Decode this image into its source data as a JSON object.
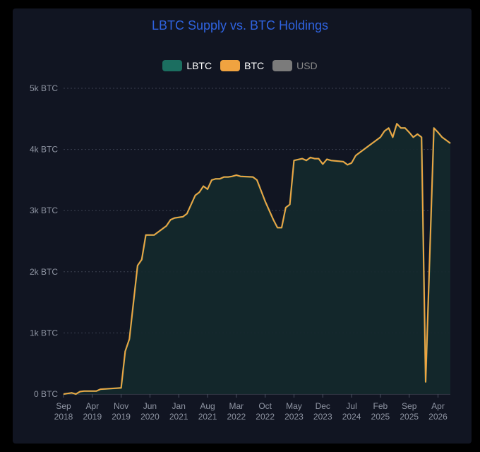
{
  "chart_data": {
    "type": "area",
    "title": "LBTC Supply vs. BTC Holdings",
    "legend": [
      {
        "name": "LBTC",
        "color": "#1b6e60"
      },
      {
        "name": "BTC",
        "color": "#f0a340"
      },
      {
        "name": "USD",
        "color": "#7b7b7b",
        "muted": true
      }
    ],
    "legend_position": "top",
    "y_ticks": [
      {
        "value": 0,
        "label": "0 BTC"
      },
      {
        "value": 1000,
        "label": "1k BTC"
      },
      {
        "value": 2000,
        "label": "2k BTC"
      },
      {
        "value": 3000,
        "label": "3k BTC"
      },
      {
        "value": 4000,
        "label": "4k BTC"
      },
      {
        "value": 5000,
        "label": "5k BTC"
      }
    ],
    "ylim": [
      0,
      5000
    ],
    "xlim": [
      "2018-09",
      "2026-07"
    ],
    "x_ticks": [
      {
        "value": "2018-09",
        "month": "Sep",
        "year": "2018"
      },
      {
        "value": "2019-04",
        "month": "Apr",
        "year": "2019"
      },
      {
        "value": "2019-11",
        "month": "Nov",
        "year": "2019"
      },
      {
        "value": "2020-06",
        "month": "Jun",
        "year": "2020"
      },
      {
        "value": "2021-01",
        "month": "Jan",
        "year": "2021"
      },
      {
        "value": "2021-08",
        "month": "Aug",
        "year": "2021"
      },
      {
        "value": "2022-03",
        "month": "Mar",
        "year": "2022"
      },
      {
        "value": "2022-10",
        "month": "Oct",
        "year": "2022"
      },
      {
        "value": "2023-05",
        "month": "May",
        "year": "2023"
      },
      {
        "value": "2023-12",
        "month": "Dec",
        "year": "2023"
      },
      {
        "value": "2024-07",
        "month": "Jul",
        "year": "2024"
      },
      {
        "value": "2025-02",
        "month": "Feb",
        "year": "2025"
      },
      {
        "value": "2025-09",
        "month": "Sep",
        "year": "2025"
      },
      {
        "value": "2026-04",
        "month": "Apr",
        "year": "2026"
      }
    ],
    "grid": true,
    "series": [
      {
        "name": "BTC",
        "x": [
          "2018-09",
          "2018-11",
          "2018-12",
          "2019-01",
          "2019-02",
          "2019-05",
          "2019-06",
          "2019-11",
          "2019-12",
          "2020-01",
          "2020-03",
          "2020-04",
          "2020-05",
          "2020-06",
          "2020-07",
          "2020-09",
          "2020-10",
          "2020-11",
          "2020-12",
          "2021-02",
          "2021-03",
          "2021-05",
          "2021-06",
          "2021-07",
          "2021-08",
          "2021-09",
          "2021-10",
          "2021-11",
          "2021-12",
          "2022-01",
          "2022-02",
          "2022-03",
          "2022-04",
          "2022-07",
          "2022-08",
          "2022-10",
          "2022-12",
          "2023-01",
          "2023-02",
          "2023-03",
          "2023-04",
          "2023-05",
          "2023-07",
          "2023-08",
          "2023-09",
          "2023-10",
          "2023-11",
          "2023-12",
          "2024-01",
          "2024-02",
          "2024-05",
          "2024-06",
          "2024-07",
          "2024-08",
          "2024-09",
          "2024-12",
          "2025-01",
          "2025-02",
          "2025-03",
          "2025-04",
          "2025-05",
          "2025-06",
          "2025-07",
          "2025-08",
          "2025-09",
          "2025-10",
          "2025-11",
          "2025-12",
          "2026-01",
          "2026-03",
          "2026-04",
          "2026-05",
          "2026-06",
          "2026-07"
        ],
        "values": [
          0,
          20,
          0,
          40,
          50,
          50,
          80,
          100,
          700,
          900,
          2100,
          2200,
          2600,
          2600,
          2600,
          2700,
          2750,
          2850,
          2880,
          2900,
          2950,
          3250,
          3300,
          3400,
          3350,
          3500,
          3520,
          3520,
          3550,
          3550,
          3560,
          3580,
          3560,
          3550,
          3500,
          3150,
          2850,
          2720,
          2720,
          3050,
          3100,
          3820,
          3850,
          3820,
          3870,
          3850,
          3850,
          3760,
          3840,
          3820,
          3800,
          3750,
          3780,
          3900,
          3950,
          4100,
          4150,
          4200,
          4300,
          4350,
          4200,
          4420,
          4350,
          4350,
          4280,
          4200,
          4250,
          4200,
          200,
          4350,
          4280,
          4200,
          4150,
          4100
        ],
        "values_note": ""
      }
    ]
  }
}
